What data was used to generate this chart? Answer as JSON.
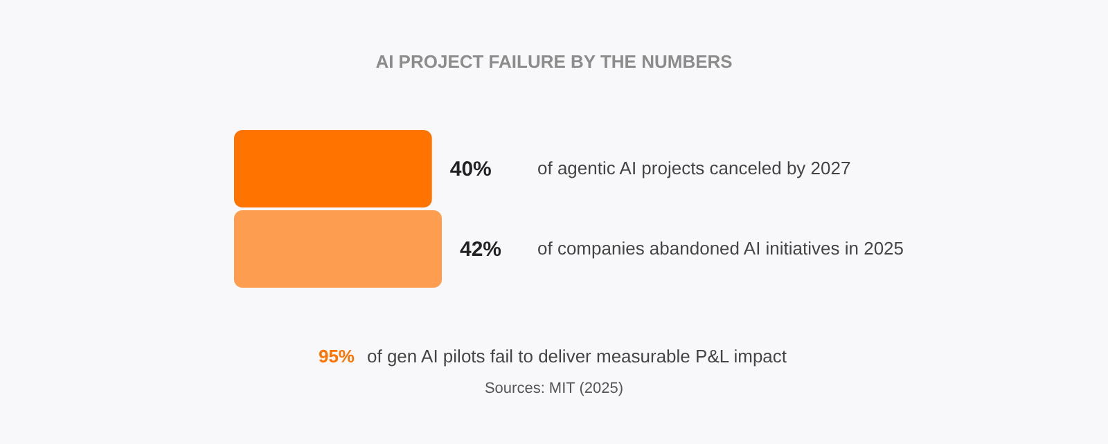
{
  "chart_data": {
    "type": "bar",
    "orientation": "horizontal",
    "title": "AI PROJECT FAILURE BY THE NUMBERS",
    "categories": [
      "of agentic AI projects canceled by 2027",
      "of companies abandoned AI initiatives in 2025"
    ],
    "values": [
      40,
      42
    ],
    "colors": [
      "#ff7300",
      "#fd9d4f"
    ],
    "value_labels": [
      "40%",
      "42%"
    ],
    "annotations": [
      "95% of gen AI pilots fail to deliver measurable P&L impact",
      "Sources: MIT (2025)"
    ]
  }
}
